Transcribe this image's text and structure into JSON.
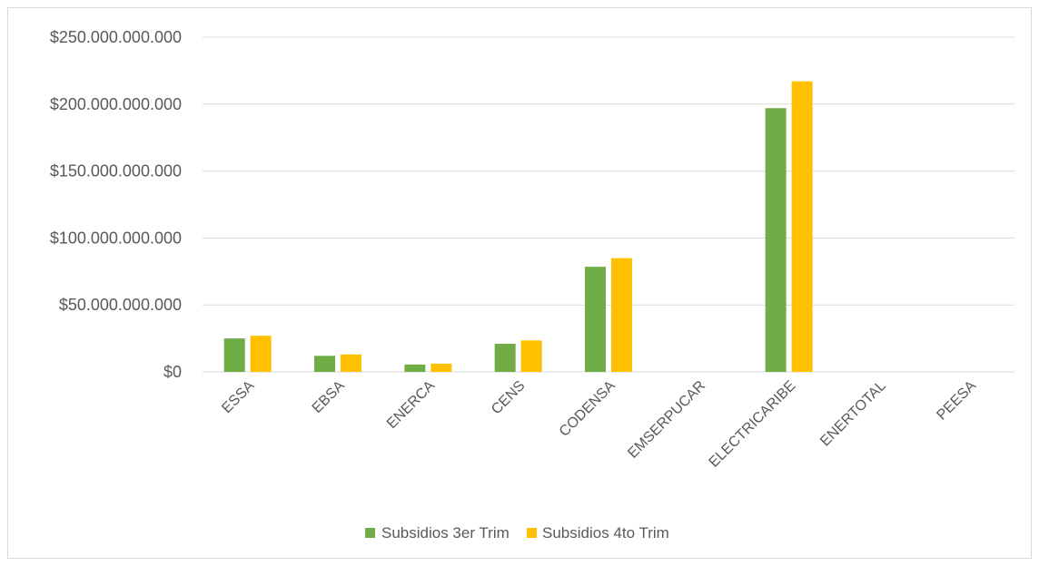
{
  "chart_data": {
    "type": "bar",
    "title": "",
    "xlabel": "",
    "ylabel": "",
    "categories": [
      "ESSA",
      "EBSA",
      "ENERCA",
      "CENS",
      "CODENSA",
      "EMSERPUCAR",
      "ELECTRICARIBE",
      "ENERTOTAL",
      "PEESA"
    ],
    "series": [
      {
        "name": "Subsidios 3er Trim",
        "color": "#70ad47",
        "values": [
          25000000000,
          12000000000,
          5500000000,
          21000000000,
          78500000000,
          0,
          197000000000,
          0,
          0
        ]
      },
      {
        "name": "Subsidios 4to Trim",
        "color": "#ffc000",
        "values": [
          27000000000,
          13000000000,
          6200000000,
          23500000000,
          85000000000,
          0,
          217000000000,
          0,
          0
        ]
      }
    ],
    "ylim": [
      0,
      250000000000
    ],
    "y_ticks": [
      0,
      50000000000,
      100000000000,
      150000000000,
      200000000000,
      250000000000
    ],
    "y_tick_labels": [
      "$0",
      "$50.000.000.000",
      "$100.000.000.000",
      "$150.000.000.000",
      "$200.000.000.000",
      "$250.000.000.000"
    ],
    "grid": true,
    "legend_position": "bottom",
    "colors": {
      "gridline": "#d9d9d9",
      "axis_text": "#595959",
      "border": "#d9d9d9"
    }
  }
}
